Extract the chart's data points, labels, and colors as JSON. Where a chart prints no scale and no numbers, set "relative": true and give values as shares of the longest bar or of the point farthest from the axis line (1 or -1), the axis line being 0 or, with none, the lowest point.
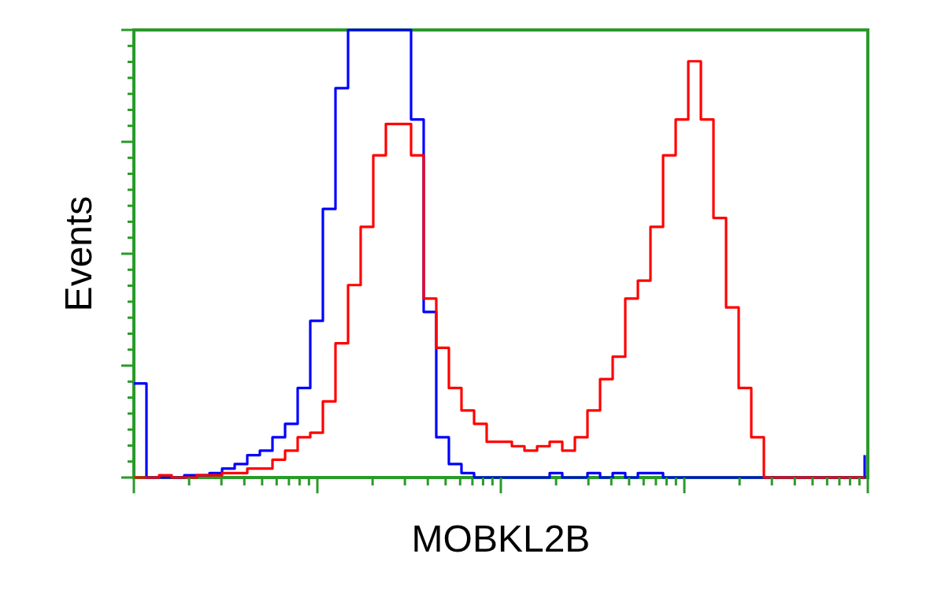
{
  "chart_data": {
    "type": "step",
    "relative": true,
    "xlabel": "MOBKL2B",
    "ylabel": "Events",
    "categories": [
      null,
      null,
      null,
      null,
      null,
      null,
      null,
      null,
      null,
      null,
      null,
      null,
      null,
      null,
      null,
      null,
      null,
      null,
      null,
      null,
      null,
      null,
      null,
      null,
      null,
      null,
      null,
      null,
      null,
      null,
      null,
      null,
      null,
      null,
      null,
      null,
      null,
      null,
      null,
      null,
      null,
      null,
      null,
      null,
      null,
      null,
      null,
      null,
      null,
      null,
      null,
      null,
      null,
      null,
      null,
      null,
      null,
      null,
      null
    ],
    "series": [
      {
        "color": "#0000ff",
        "values": [
          0.21,
          0,
          0,
          0,
          0.005,
          0.005,
          0.01,
          0.02,
          0.03,
          0.05,
          0.06,
          0.09,
          0.12,
          0.2,
          0.35,
          0.6,
          0.87,
          1,
          1,
          1,
          1,
          1,
          0.8,
          0.37,
          0.09,
          0.03,
          0.01,
          0,
          0,
          0,
          0,
          0,
          0,
          0.01,
          0,
          0,
          0.01,
          0,
          0.01,
          0,
          0.01,
          0.01,
          0,
          0,
          0,
          0,
          0,
          0,
          0,
          0,
          0,
          0,
          0,
          0,
          0,
          0,
          0,
          0,
          0.05
        ]
      },
      {
        "color": "#ff0000",
        "values": [
          0,
          0,
          0.005,
          0,
          0,
          0.005,
          0.005,
          0.01,
          0.01,
          0.02,
          0.02,
          0.04,
          0.06,
          0.09,
          0.1,
          0.17,
          0.3,
          0.43,
          0.56,
          0.72,
          0.79,
          0.79,
          0.72,
          0.4,
          0.29,
          0.2,
          0.15,
          0.12,
          0.08,
          0.08,
          0.07,
          0.06,
          0.07,
          0.08,
          0.06,
          0.09,
          0.15,
          0.22,
          0.27,
          0.4,
          0.44,
          0.56,
          0.72,
          0.8,
          0.93,
          0.8,
          0.58,
          0.38,
          0.2,
          0.09,
          0,
          0,
          0,
          0,
          0,
          0,
          0,
          0,
          0
        ]
      }
    ]
  }
}
